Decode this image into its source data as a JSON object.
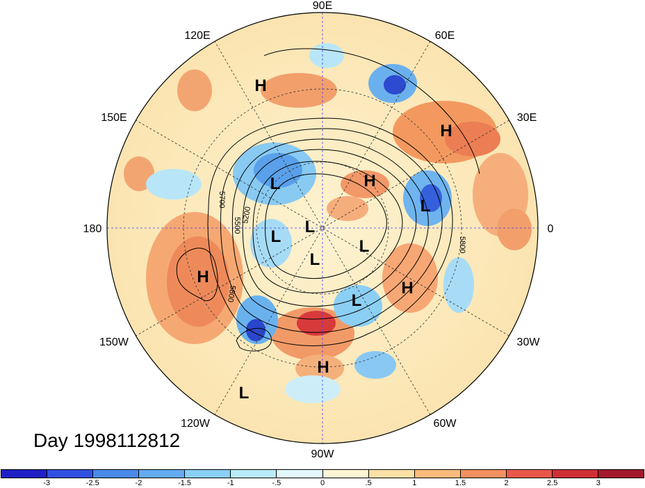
{
  "map": {
    "title": "Day 1998112812",
    "longitude_labels": [
      "90E",
      "60E",
      "30E",
      "0",
      "30W",
      "60W",
      "90W",
      "120W",
      "150W",
      "180",
      "150E",
      "120E"
    ],
    "pressure_systems": [
      {
        "type": "H",
        "region": "siberia-north"
      },
      {
        "type": "H",
        "region": "west-siberia"
      },
      {
        "type": "L",
        "region": "east-siberia"
      },
      {
        "type": "H",
        "region": "barents"
      },
      {
        "type": "L",
        "region": "scandinavia"
      },
      {
        "type": "L",
        "region": "pole"
      },
      {
        "type": "L",
        "region": "chukchi"
      },
      {
        "type": "L",
        "region": "greenland"
      },
      {
        "type": "H",
        "region": "north-pacific"
      },
      {
        "type": "H",
        "region": "north-atlantic"
      },
      {
        "type": "L",
        "region": "labrador"
      },
      {
        "type": "L",
        "region": "hudson"
      },
      {
        "type": "H",
        "region": "gulf-of-mexico"
      },
      {
        "type": "L",
        "region": "east-pacific"
      }
    ],
    "contour_labels": [
      "5700",
      "5500",
      "5200",
      "5800",
      "5800"
    ]
  },
  "colorbar": {
    "colors": [
      "#1f1fc6",
      "#3050e0",
      "#4a8ae8",
      "#63aaf0",
      "#88d0f5",
      "#b8ecfa",
      "#e3f8fb",
      "#fdf6d5",
      "#fbe1a6",
      "#f9bb7c",
      "#f29060",
      "#e8574a",
      "#cf2f36",
      "#a3182a"
    ],
    "labels": [
      "-3",
      "-2.5",
      "-2",
      "-1.5",
      "-1",
      "-.5",
      "0",
      ".5",
      "1",
      "1.5",
      "2",
      "2.5",
      "3"
    ]
  },
  "colors": {
    "meridian_line": "#3c3cff",
    "grid_line": "#333333",
    "contour": "#000000"
  }
}
